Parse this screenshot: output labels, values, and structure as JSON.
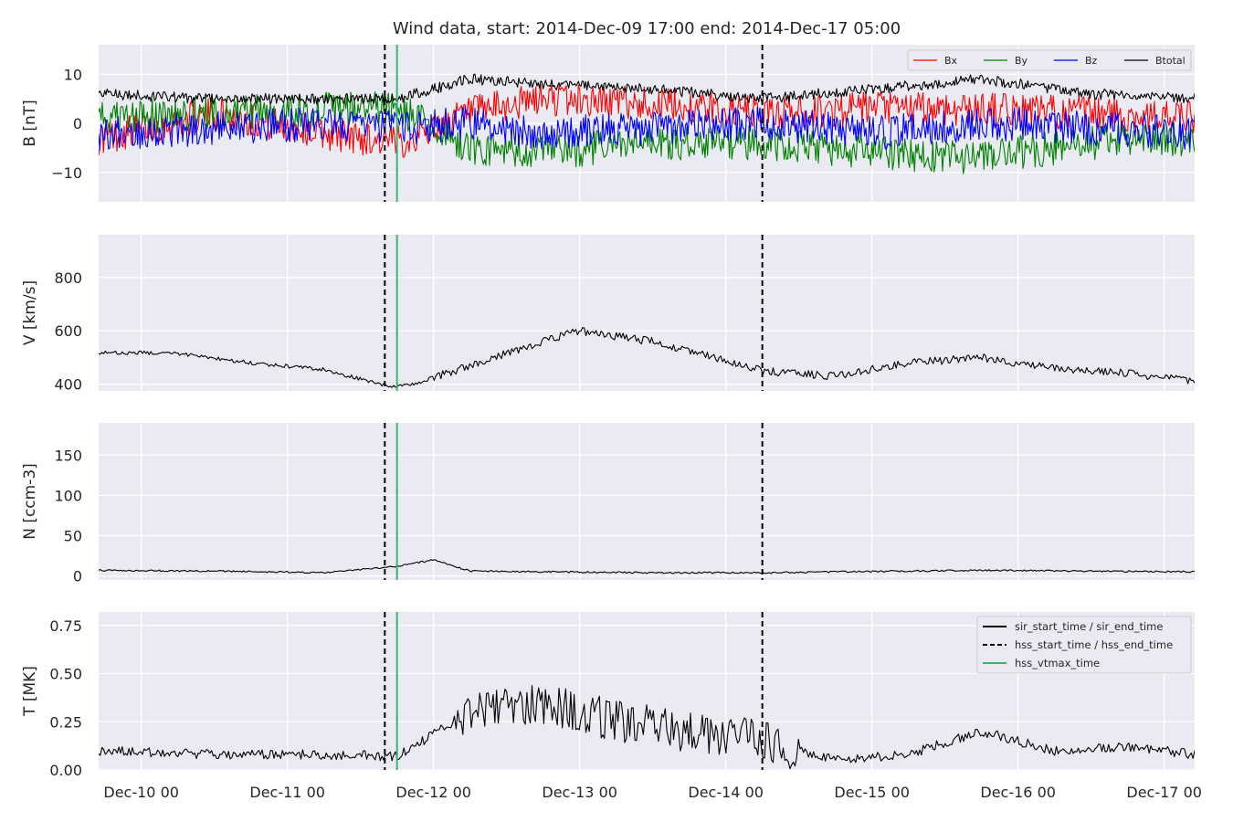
{
  "figure_title": "Wind data, start: 2014-Dec-09 17:00  end: 2014-Dec-17 05:00",
  "colors": {
    "panel_bg": "#EAEAF2",
    "grid": "#FFFFFF",
    "bx": "#FF0000",
    "by": "#008000",
    "bz": "#0000FF",
    "btotal": "#000000",
    "hss_line": "#000000",
    "vtmax_line": "#3CB371"
  },
  "chart_data": [
    {
      "type": "line",
      "ylabel": "B [nT]",
      "ylim": [
        -16,
        16
      ],
      "yticks": [
        -10,
        0,
        10
      ],
      "ytick_labels": [
        "−10",
        "0",
        "10"
      ],
      "legend": {
        "placement": "top-right",
        "columns": 4,
        "entries": [
          "Bx",
          "By",
          "Bz",
          "Btotal"
        ]
      },
      "series": [
        {
          "name": "Bx",
          "color": "#FF0000",
          "x": [
            "2014-12-09 17:00",
            "2014-12-10 12:00",
            "2014-12-11 06:00",
            "2014-12-11 18:00",
            "2014-12-12 06:00",
            "2014-12-12 18:00",
            "2014-12-13 12:00",
            "2014-12-14 06:00",
            "2014-12-15 00:00",
            "2014-12-15 18:00",
            "2014-12-16 12:00",
            "2014-12-17 05:00"
          ],
          "values": [
            -3,
            2,
            -2,
            -4,
            2,
            5,
            4,
            2,
            3,
            3,
            2,
            1
          ]
        },
        {
          "name": "By",
          "color": "#008000",
          "x": [
            "2014-12-09 17:00",
            "2014-12-10 12:00",
            "2014-12-11 06:00",
            "2014-12-11 18:00",
            "2014-12-12 06:00",
            "2014-12-12 18:00",
            "2014-12-13 12:00",
            "2014-12-14 06:00",
            "2014-12-15 00:00",
            "2014-12-15 18:00",
            "2014-12-16 12:00",
            "2014-12-17 05:00"
          ],
          "values": [
            1,
            2,
            3,
            3,
            -5,
            -6,
            -4,
            -4,
            -6,
            -7,
            -4,
            -3
          ]
        },
        {
          "name": "Bz",
          "color": "#0000FF",
          "x": [
            "2014-12-09 17:00",
            "2014-12-10 12:00",
            "2014-12-11 06:00",
            "2014-12-11 18:00",
            "2014-12-12 06:00",
            "2014-12-12 18:00",
            "2014-12-13 12:00",
            "2014-12-14 06:00",
            "2014-12-15 00:00",
            "2014-12-15 18:00",
            "2014-12-16 12:00",
            "2014-12-17 05:00"
          ],
          "values": [
            -2,
            -1,
            0,
            -1,
            0,
            -2,
            -1,
            0,
            -2,
            0,
            -1,
            -2
          ]
        },
        {
          "name": "Btotal",
          "color": "#000000",
          "x": [
            "2014-12-09 17:00",
            "2014-12-10 12:00",
            "2014-12-11 06:00",
            "2014-12-11 18:00",
            "2014-12-12 06:00",
            "2014-12-12 18:00",
            "2014-12-13 12:00",
            "2014-12-14 06:00",
            "2014-12-15 00:00",
            "2014-12-15 18:00",
            "2014-12-16 12:00",
            "2014-12-17 05:00"
          ],
          "values": [
            6,
            5,
            5,
            5,
            9,
            8,
            7,
            5,
            7,
            9,
            6,
            5
          ]
        }
      ]
    },
    {
      "type": "line",
      "ylabel": "V [km/s]",
      "ylim": [
        375,
        960
      ],
      "yticks": [
        400,
        600,
        800
      ],
      "ytick_labels": [
        "400",
        "600",
        "800"
      ],
      "series": [
        {
          "color": "#000000",
          "x": [
            "2014-12-09 17:00",
            "2014-12-10 06:00",
            "2014-12-10 18:00",
            "2014-12-11 06:00",
            "2014-12-11 16:00",
            "2014-12-11 20:00",
            "2014-12-12 06:00",
            "2014-12-12 18:00",
            "2014-12-13 00:00",
            "2014-12-13 12:00",
            "2014-12-14 00:00",
            "2014-12-14 06:00",
            "2014-12-14 18:00",
            "2014-12-15 06:00",
            "2014-12-15 18:00",
            "2014-12-16 06:00",
            "2014-12-16 18:00",
            "2014-12-17 05:00"
          ],
          "values": [
            520,
            515,
            480,
            455,
            395,
            395,
            470,
            560,
            600,
            560,
            490,
            450,
            430,
            480,
            500,
            460,
            440,
            410
          ]
        }
      ]
    },
    {
      "type": "line",
      "ylabel": "N [ccm-3]",
      "ylim": [
        -5,
        190
      ],
      "yticks": [
        0,
        50,
        100,
        150
      ],
      "ytick_labels": [
        "0",
        "50",
        "100",
        "150"
      ],
      "series": [
        {
          "color": "#000000",
          "x": [
            "2014-12-09 17:00",
            "2014-12-10 12:00",
            "2014-12-11 06:00",
            "2014-12-11 18:00",
            "2014-12-12 00:00",
            "2014-12-12 06:00",
            "2014-12-12 21:00",
            "2014-12-13 12:00",
            "2014-12-14 06:00",
            "2014-12-15 06:00",
            "2014-12-15 18:00",
            "2014-12-16 12:00",
            "2014-12-17 05:00"
          ],
          "values": [
            7,
            6,
            4,
            12,
            20,
            6,
            5,
            4,
            4,
            6,
            7,
            6,
            5
          ]
        }
      ]
    },
    {
      "type": "line",
      "ylabel": "T [MK]",
      "ylim": [
        0,
        0.82
      ],
      "yticks": [
        0,
        0.25,
        0.5,
        0.75
      ],
      "ytick_labels": [
        "0.00",
        "0.25",
        "0.50",
        "0.75"
      ],
      "legend": {
        "placement": "top-right",
        "entries": [
          "sir_start_time / sir_end_time",
          "hss_start_time / hss_end_time",
          "hss_vtmax_time"
        ]
      },
      "series": [
        {
          "color": "#000000",
          "x": [
            "2014-12-09 17:00",
            "2014-12-10 12:00",
            "2014-12-11 06:00",
            "2014-12-11 18:00",
            "2014-12-12 06:00",
            "2014-12-12 18:00",
            "2014-12-13 06:00",
            "2014-12-13 18:00",
            "2014-12-14 06:00",
            "2014-12-14 18:00",
            "2014-12-15 06:00",
            "2014-12-15 18:00",
            "2014-12-16 06:00",
            "2014-12-16 18:00",
            "2014-12-17 05:00"
          ],
          "values": [
            0.1,
            0.08,
            0.08,
            0.07,
            0.3,
            0.35,
            0.25,
            0.2,
            0.15,
            0.05,
            0.08,
            0.2,
            0.1,
            0.12,
            0.08
          ]
        }
      ]
    }
  ],
  "x_range": [
    "2014-12-09 17:00",
    "2014-12-17 05:00"
  ],
  "x_ticks": [
    "2014-12-10 00:00",
    "2014-12-11 00:00",
    "2014-12-12 00:00",
    "2014-12-13 00:00",
    "2014-12-14 00:00",
    "2014-12-15 00:00",
    "2014-12-16 00:00",
    "2014-12-17 00:00"
  ],
  "x_tick_labels": [
    "Dec-10 00",
    "Dec-11 00",
    "Dec-12 00",
    "Dec-13 00",
    "Dec-14 00",
    "Dec-15 00",
    "Dec-16 00",
    "Dec-17 00"
  ],
  "events": {
    "hss_start_time": "2014-12-11 16:00",
    "hss_end_time": "2014-12-14 06:00",
    "hss_vtmax_time": "2014-12-11 18:00"
  }
}
